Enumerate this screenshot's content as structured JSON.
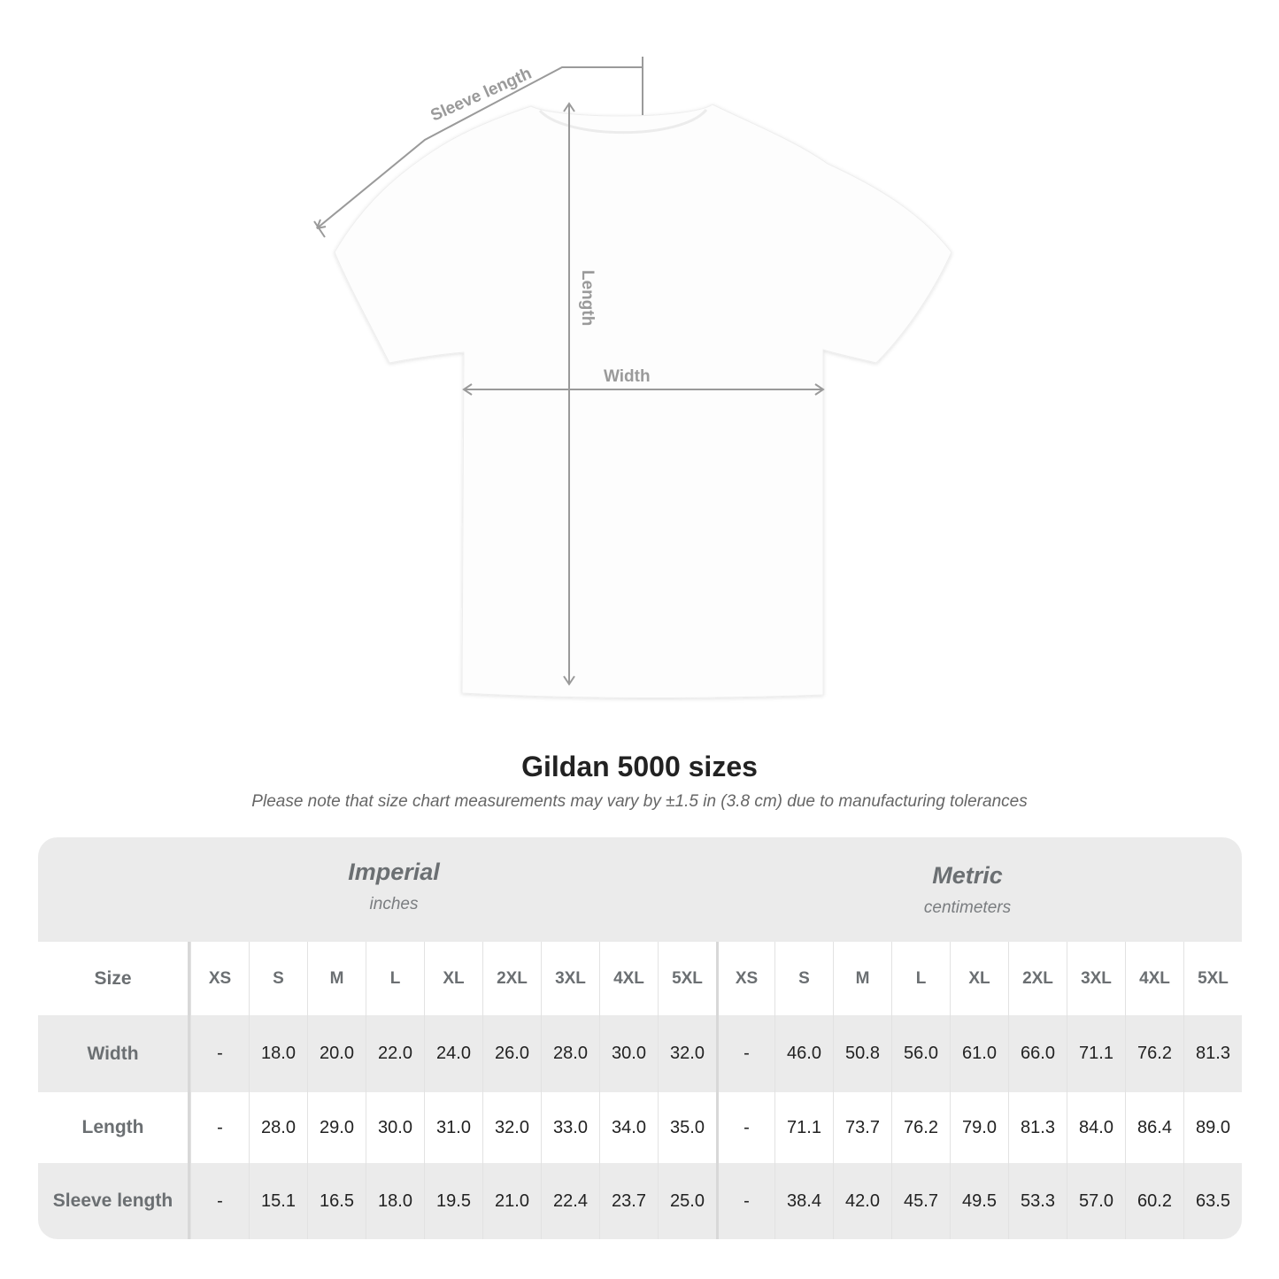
{
  "diagram": {
    "labels": {
      "sleeve": "Sleeve length",
      "length": "Length",
      "width": "Width"
    },
    "colors": {
      "shirt": "#fdfdfd",
      "measure_line": "#9a9a9a",
      "label": "#9a9a9a"
    }
  },
  "header": {
    "title": "Gildan 5000 sizes",
    "note": "Please note that size chart measurements may vary by ±1.5 in (3.8 cm) due to manufacturing tolerances"
  },
  "table": {
    "imperial": {
      "name": "Imperial",
      "unit": "inches"
    },
    "metric": {
      "name": "Metric",
      "unit": "centimeters"
    },
    "size_label": "Size",
    "sizes": [
      "XS",
      "S",
      "M",
      "L",
      "XL",
      "2XL",
      "3XL",
      "4XL",
      "5XL"
    ],
    "rows": [
      {
        "label": "Width",
        "imperial": [
          "-",
          "18.0",
          "20.0",
          "22.0",
          "24.0",
          "26.0",
          "28.0",
          "30.0",
          "32.0"
        ],
        "metric": [
          "-",
          "46.0",
          "50.8",
          "56.0",
          "61.0",
          "66.0",
          "71.1",
          "76.2",
          "81.3"
        ]
      },
      {
        "label": "Length",
        "imperial": [
          "-",
          "28.0",
          "29.0",
          "30.0",
          "31.0",
          "32.0",
          "33.0",
          "34.0",
          "35.0"
        ],
        "metric": [
          "-",
          "71.1",
          "73.7",
          "76.2",
          "79.0",
          "81.3",
          "84.0",
          "86.4",
          "89.0"
        ]
      },
      {
        "label": "Sleeve length",
        "imperial": [
          "-",
          "15.1",
          "16.5",
          "18.0",
          "19.5",
          "21.0",
          "22.4",
          "23.7",
          "25.0"
        ],
        "metric": [
          "-",
          "38.4",
          "42.0",
          "45.7",
          "49.5",
          "53.3",
          "57.0",
          "60.2",
          "63.5"
        ]
      }
    ],
    "colors": {
      "band": "#ebebeb",
      "label": "#6b6f72"
    }
  }
}
